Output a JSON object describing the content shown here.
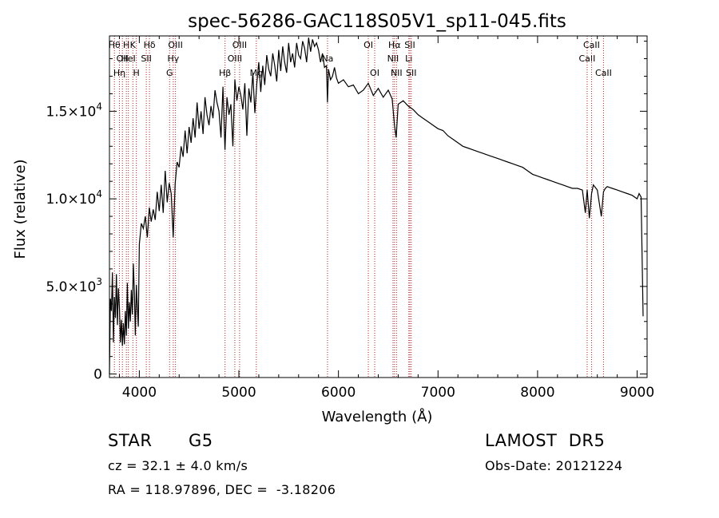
{
  "chart_data": {
    "type": "line",
    "title": "spec-56286-GAC118S05V1_sp11-045.fits",
    "xlabel": "Wavelength (Å)",
    "ylabel": "Flux (relative)",
    "xlim": [
      3700,
      9100
    ],
    "ylim": [
      -200,
      19300
    ],
    "x_ticks": [
      4000,
      5000,
      6000,
      7000,
      8000,
      9000
    ],
    "x_tick_labels": [
      "4000",
      "5000",
      "6000",
      "7000",
      "8000",
      "9000"
    ],
    "y_ticks": [
      0,
      5000,
      10000,
      15000
    ],
    "y_tick_labels": [
      {
        "mant": "0",
        "exp": ""
      },
      {
        "mant": "5.0×10",
        "exp": "3"
      },
      {
        "mant": "1.0×10",
        "exp": "4"
      },
      {
        "mant": "1.5×10",
        "exp": "4"
      }
    ],
    "grid": false,
    "series": [
      {
        "color": "#000000",
        "x": [
          3700,
          3710,
          3720,
          3730,
          3740,
          3750,
          3760,
          3770,
          3780,
          3790,
          3800,
          3810,
          3820,
          3830,
          3840,
          3850,
          3860,
          3870,
          3880,
          3890,
          3900,
          3910,
          3920,
          3930,
          3940,
          3950,
          3960,
          3970,
          3980,
          3990,
          4000,
          4020,
          4040,
          4060,
          4080,
          4100,
          4120,
          4140,
          4160,
          4180,
          4200,
          4220,
          4240,
          4260,
          4280,
          4300,
          4320,
          4340,
          4360,
          4380,
          4400,
          4420,
          4440,
          4460,
          4480,
          4500,
          4520,
          4540,
          4560,
          4580,
          4600,
          4620,
          4640,
          4660,
          4680,
          4700,
          4720,
          4740,
          4760,
          4780,
          4800,
          4820,
          4840,
          4860,
          4880,
          4900,
          4920,
          4940,
          4960,
          4980,
          5000,
          5020,
          5040,
          5060,
          5080,
          5100,
          5120,
          5140,
          5160,
          5180,
          5200,
          5220,
          5240,
          5260,
          5280,
          5300,
          5320,
          5340,
          5360,
          5380,
          5400,
          5420,
          5440,
          5460,
          5480,
          5500,
          5520,
          5540,
          5560,
          5580,
          5600,
          5620,
          5640,
          5660,
          5680,
          5700,
          5720,
          5740,
          5760,
          5780,
          5800,
          5820,
          5840,
          5860,
          5880,
          5890,
          5900,
          5920,
          5940,
          5960,
          5980,
          6000,
          6050,
          6100,
          6150,
          6200,
          6250,
          6300,
          6350,
          6400,
          6450,
          6500,
          6540,
          6563,
          6580,
          6600,
          6650,
          6700,
          6750,
          6800,
          6850,
          6900,
          6950,
          7000,
          7050,
          7100,
          7150,
          7200,
          7250,
          7300,
          7350,
          7400,
          7450,
          7500,
          7550,
          7600,
          7650,
          7700,
          7750,
          7800,
          7850,
          7900,
          7950,
          8000,
          8050,
          8100,
          8150,
          8200,
          8250,
          8300,
          8350,
          8400,
          8450,
          8480,
          8498,
          8520,
          8542,
          8560,
          8600,
          8640,
          8662,
          8680,
          8700,
          8750,
          8800,
          8850,
          8900,
          8950,
          9000,
          9020,
          9040,
          9060
        ],
        "y": [
          0,
          4300,
          3600,
          5800,
          1800,
          4400,
          3200,
          5700,
          2800,
          4900,
          3800,
          1800,
          3100,
          1600,
          2900,
          1700,
          3600,
          2200,
          5200,
          2600,
          4100,
          3000,
          4800,
          3400,
          6300,
          4700,
          2200,
          5100,
          3800,
          2700,
          7400,
          8600,
          8300,
          9000,
          7800,
          9500,
          8700,
          9400,
          8800,
          10400,
          9300,
          10800,
          9200,
          11600,
          9800,
          10900,
          10300,
          7800,
          10900,
          12100,
          11800,
          13000,
          12400,
          13900,
          12600,
          14100,
          13200,
          14600,
          13500,
          15500,
          14000,
          15000,
          13700,
          15800,
          14800,
          14200,
          15300,
          14600,
          16200,
          15500,
          15000,
          13500,
          16400,
          12800,
          15800,
          14800,
          15400,
          13000,
          16800,
          15600,
          16400,
          15900,
          15100,
          16600,
          13600,
          16300,
          15500,
          17200,
          14900,
          16600,
          17800,
          16100,
          17600,
          16500,
          18200,
          17400,
          17000,
          18300,
          17600,
          16700,
          18500,
          17300,
          18700,
          17800,
          17200,
          18900,
          17800,
          18300,
          17500,
          18900,
          18200,
          18000,
          19000,
          18600,
          17800,
          19200,
          18400,
          19100,
          18700,
          18900,
          18500,
          17800,
          18300,
          17500,
          17600,
          15500,
          17400,
          16800,
          17000,
          17500,
          16900,
          16600,
          16800,
          16400,
          16500,
          16000,
          16200,
          16600,
          15900,
          16300,
          15800,
          16200,
          15700,
          14200,
          13500,
          15400,
          15600,
          15300,
          15100,
          14800,
          14600,
          14400,
          14200,
          14000,
          13900,
          13600,
          13400,
          13200,
          13000,
          12900,
          12800,
          12700,
          12600,
          12500,
          12400,
          12300,
          12200,
          12100,
          12000,
          11900,
          11800,
          11600,
          11400,
          11300,
          11200,
          11100,
          11000,
          10900,
          10800,
          10700,
          10600,
          10600,
          10500,
          9200,
          10500,
          8900,
          10300,
          10800,
          10500,
          9000,
          10400,
          10600,
          10700,
          10600,
          10500,
          10400,
          10300,
          10200,
          10000,
          10300,
          10100,
          3300
        ]
      }
    ],
    "line_markers": [
      {
        "x": 3750,
        "label": "Hθ",
        "row": 0
      },
      {
        "x": 3800,
        "label": "Hη",
        "row": 2
      },
      {
        "x": 3830,
        "label": "OII",
        "row": 1
      },
      {
        "x": 3870,
        "label": "H",
        "row": 0
      },
      {
        "x": 3890,
        "label": "HeI",
        "row": 1
      },
      {
        "x": 3935,
        "label": "K",
        "row": 0
      },
      {
        "x": 3970,
        "label": "H",
        "row": 2
      },
      {
        "x": 4070,
        "label": "SII",
        "row": 1
      },
      {
        "x": 4102,
        "label": "Hδ",
        "row": 0
      },
      {
        "x": 4304,
        "label": "G",
        "row": 2
      },
      {
        "x": 4341,
        "label": "Hγ",
        "row": 1
      },
      {
        "x": 4363,
        "label": "OIII",
        "row": 0
      },
      {
        "x": 4861,
        "label": "Hβ",
        "row": 2
      },
      {
        "x": 4959,
        "label": "OIII",
        "row": 1
      },
      {
        "x": 5007,
        "label": "OIII",
        "row": 0
      },
      {
        "x": 5175,
        "label": "Mg",
        "row": 2
      },
      {
        "x": 5890,
        "label": "Na",
        "row": 1
      },
      {
        "x": 6300,
        "label": "OI",
        "row": 0
      },
      {
        "x": 6364,
        "label": "OI",
        "row": 2
      },
      {
        "x": 6548,
        "label": "NII",
        "row": 1
      },
      {
        "x": 6563,
        "label": "Hα",
        "row": 0
      },
      {
        "x": 6583,
        "label": "NII",
        "row": 2
      },
      {
        "x": 6707,
        "label": "Li",
        "row": 1
      },
      {
        "x": 6717,
        "label": "SII",
        "row": 0
      },
      {
        "x": 6731,
        "label": "SII",
        "row": 2
      },
      {
        "x": 8498,
        "label": "CaII",
        "row": 1
      },
      {
        "x": 8542,
        "label": "CaII",
        "row": 0
      },
      {
        "x": 8662,
        "label": "CaII",
        "row": 2
      }
    ]
  },
  "info": {
    "object_class": "STAR",
    "subclass": "G5",
    "survey": "LAMOST  DR5",
    "cz": "cz = 32.1 ± 4.0 km/s",
    "obs_date": "Obs-Date: 20121224",
    "coords": "RA = 118.97896, DEC =  -3.18206"
  }
}
